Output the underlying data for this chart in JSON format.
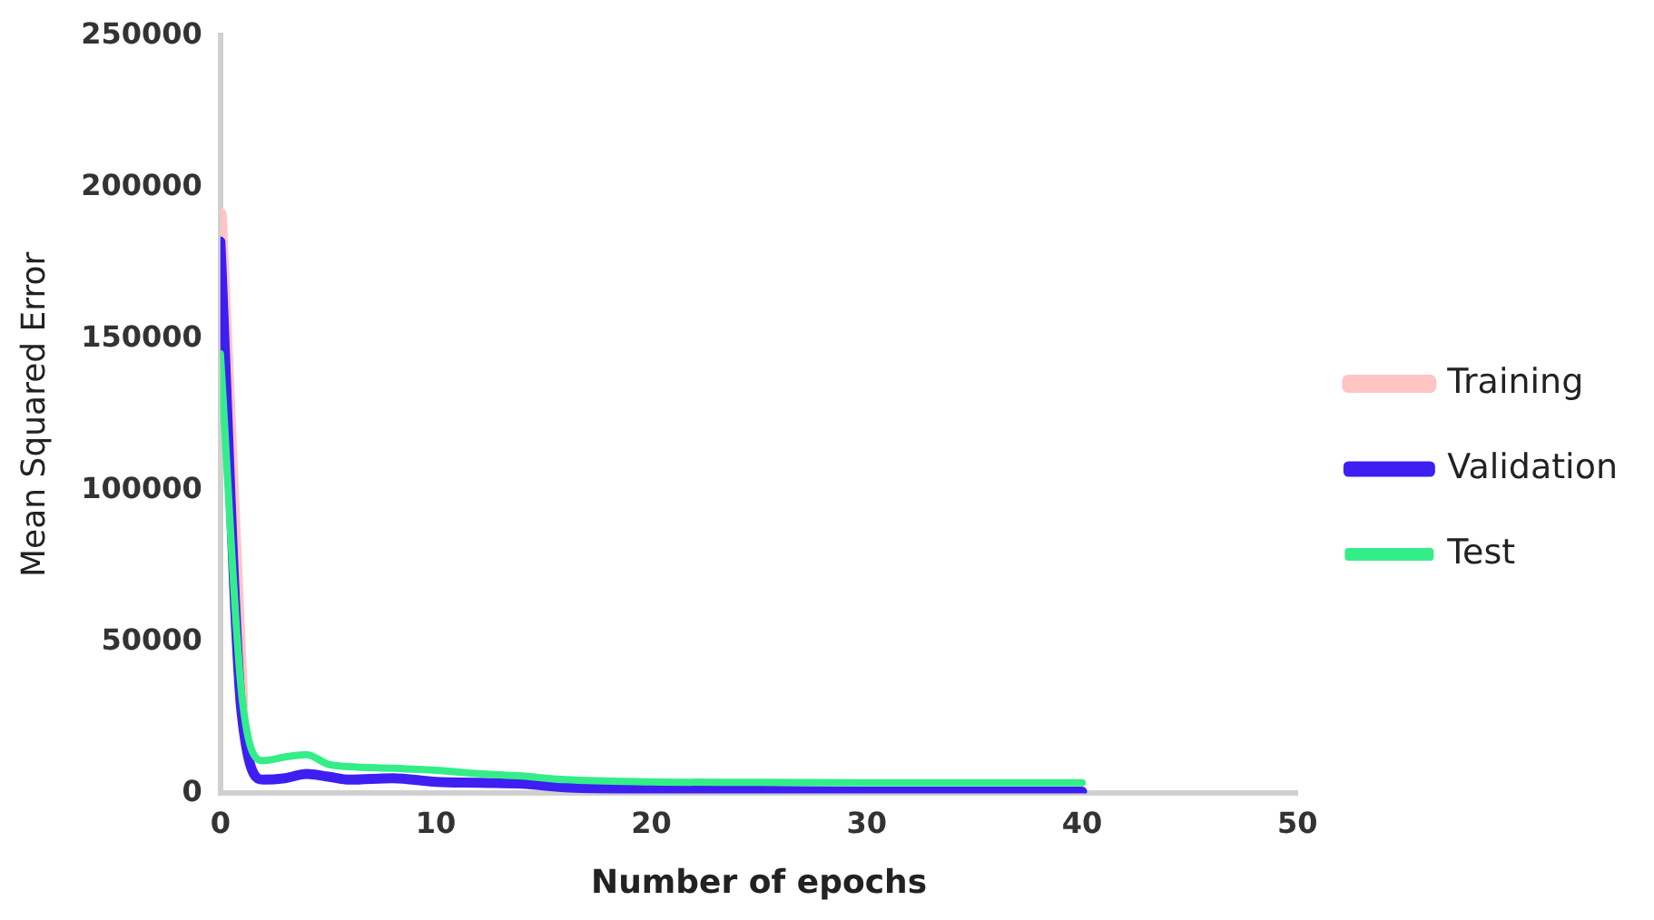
{
  "chart_data": {
    "type": "line",
    "xlabel": "Number of epochs",
    "ylabel": "Mean Squared Error",
    "x": [
      0,
      1,
      2,
      3,
      4,
      5,
      6,
      8,
      10,
      12,
      14,
      16,
      20,
      25,
      30,
      35,
      40
    ],
    "series": [
      {
        "name": "Training",
        "color": "#ffc4c4",
        "values": [
          191000,
          29000,
          null,
          null,
          null,
          null,
          null,
          null,
          null,
          null,
          null,
          null,
          null,
          null,
          null,
          null,
          null
        ]
      },
      {
        "name": "Validation",
        "color": "#3d1ff2",
        "values": [
          182000,
          25500,
          4500,
          5000,
          6400,
          5500,
          4500,
          5000,
          3800,
          3500,
          3200,
          2000,
          1300,
          900,
          600,
          600,
          600
        ]
      },
      {
        "name": "Test",
        "color": "#33ee88",
        "values": [
          145000,
          32000,
          10800,
          12000,
          12800,
          9600,
          8800,
          8300,
          7600,
          6500,
          5700,
          4500,
          3800,
          3600,
          3500,
          3500,
          3500
        ]
      }
    ],
    "xlim": [
      0,
      50
    ],
    "xticks": [
      0,
      10,
      20,
      30,
      40,
      50
    ],
    "ylim": [
      0,
      250000
    ],
    "yticks": [
      0,
      50000,
      100000,
      150000,
      200000,
      250000
    ],
    "grid": false,
    "legend": "right",
    "marker": "none",
    "line_style": "solid"
  }
}
